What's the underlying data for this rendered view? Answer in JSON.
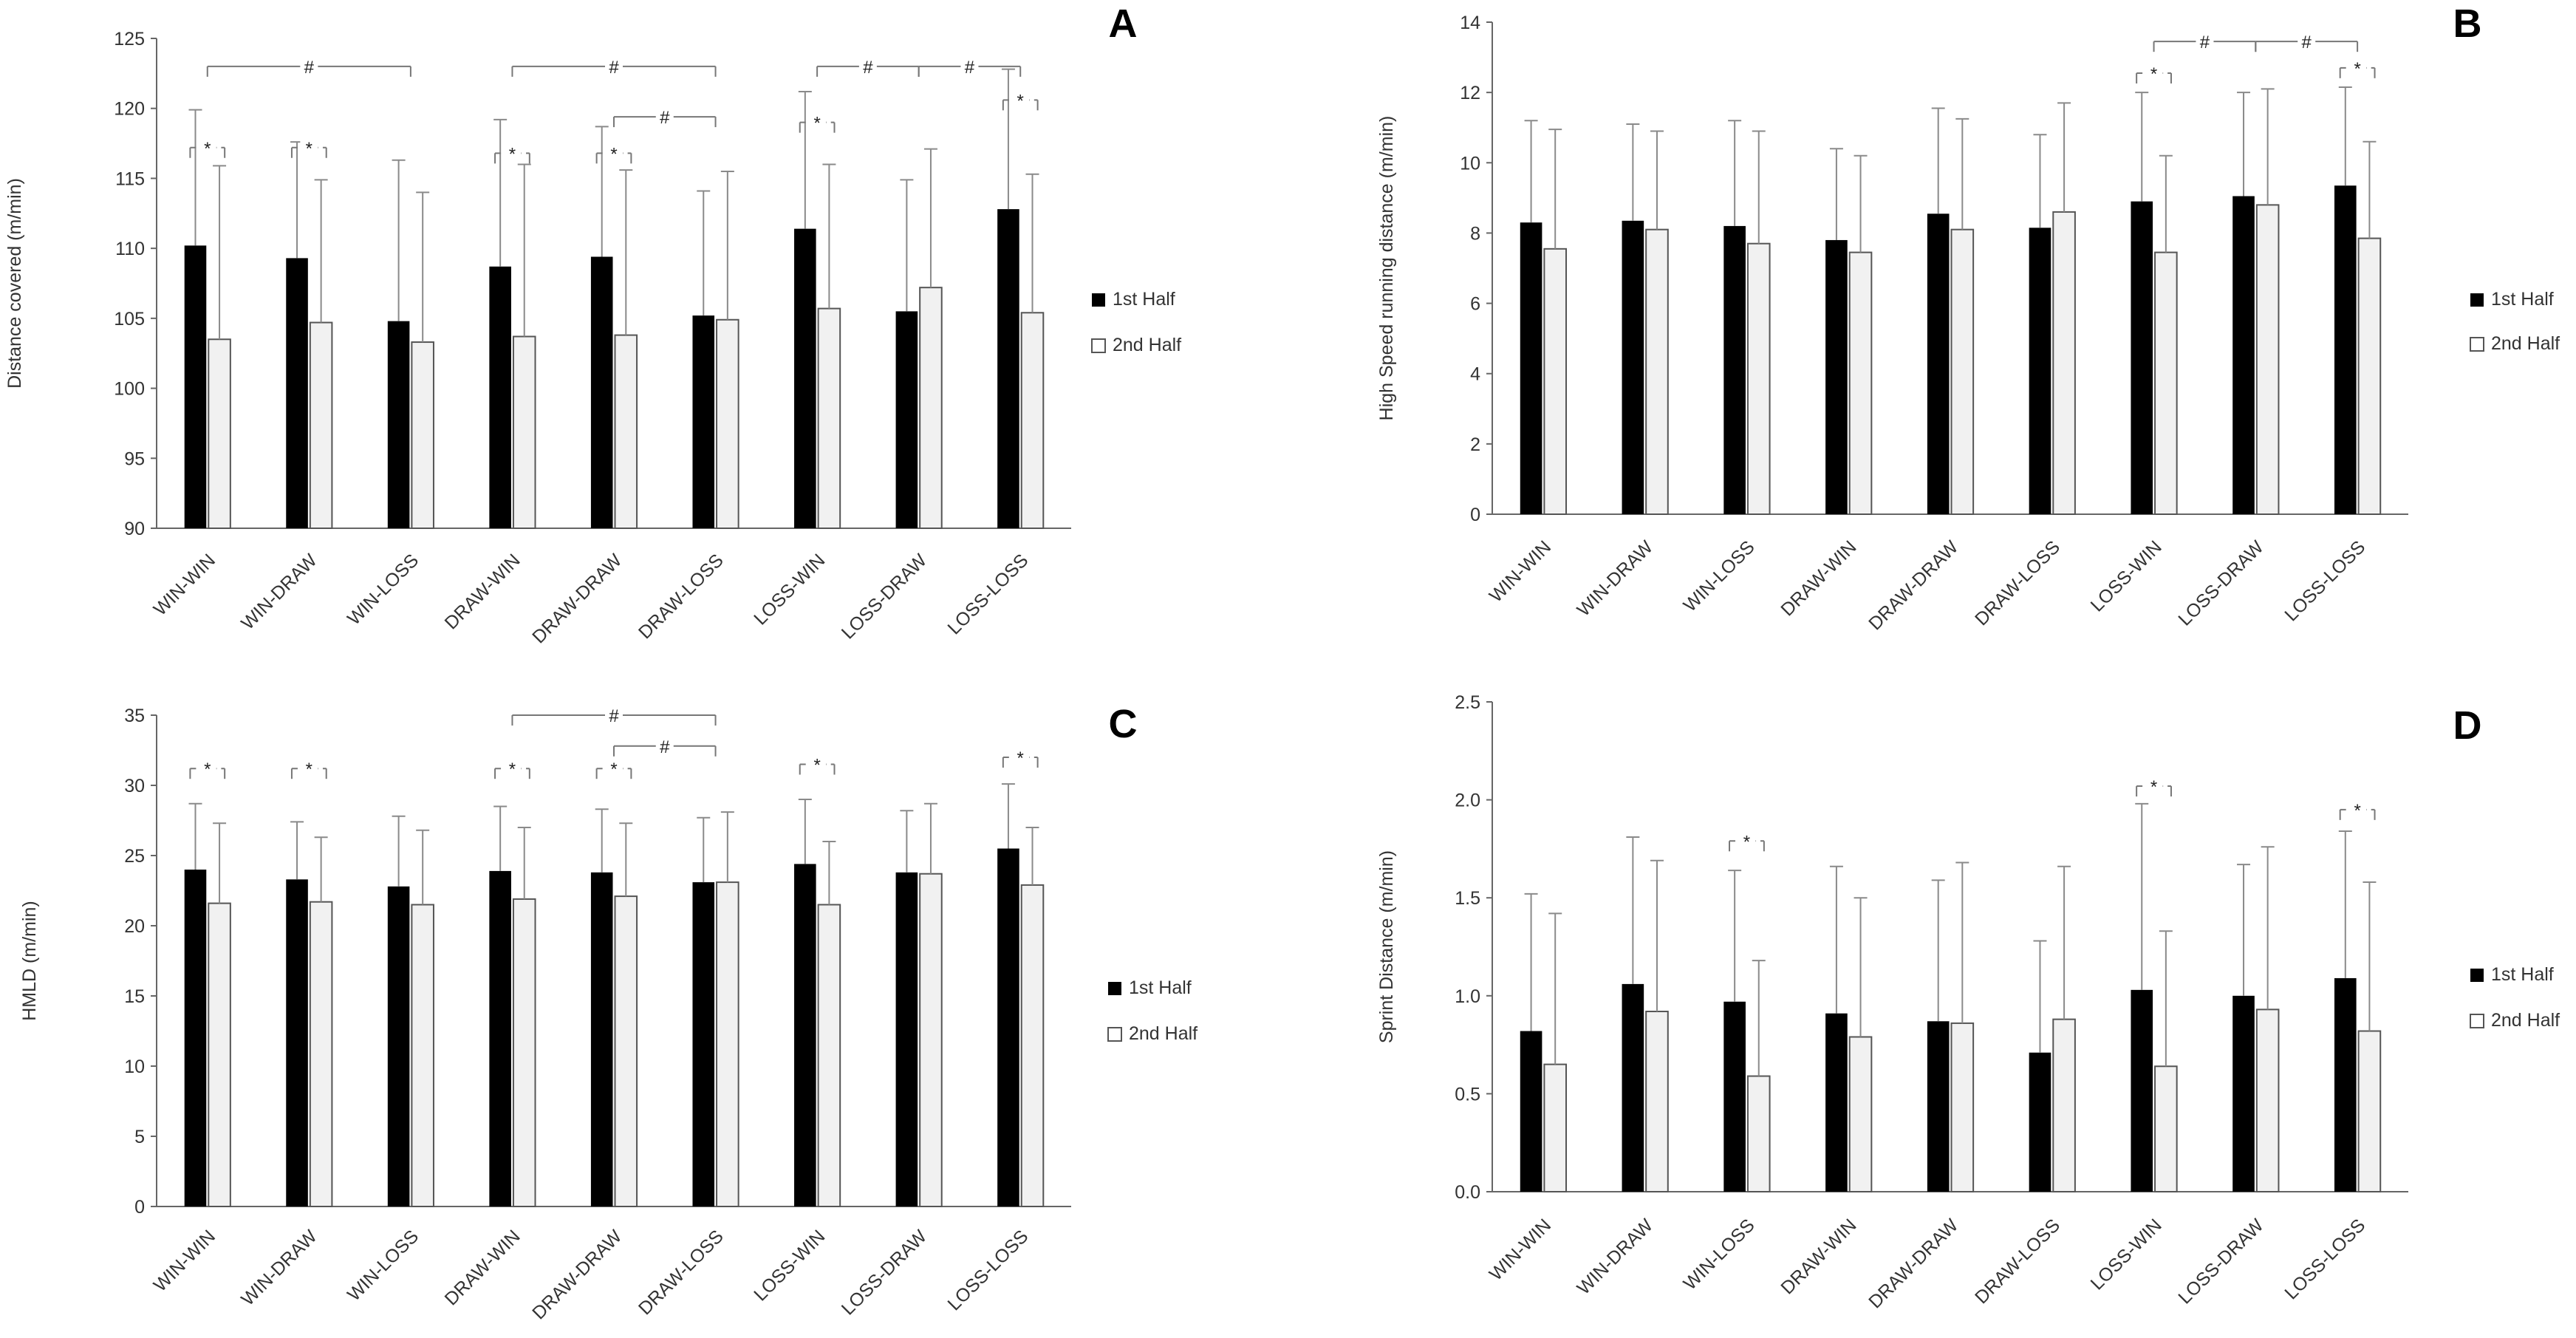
{
  "legend": {
    "first_half": "1st Half",
    "second_half": "2nd Half"
  },
  "colors": {
    "first_half": "#000000",
    "second_half": "#f1f1f1",
    "axis": "#666666",
    "errorbar": "#8a8a8a",
    "bracket": "#777777"
  },
  "chart_data": [
    {
      "panel": "A",
      "type": "bar",
      "ylabel": "Distance covered (m/min)",
      "ylim": [
        90,
        125
      ],
      "yticks": [
        "90",
        "95",
        "100",
        "105",
        "110",
        "115",
        "120",
        "125"
      ],
      "categories": [
        "WIN-WIN",
        "WIN-DRAW",
        "WIN-LOSS",
        "DRAW-WIN",
        "DRAW-DRAW",
        "DRAW-LOSS",
        "LOSS-WIN",
        "LOSS-DRAW",
        "LOSS-LOSS"
      ],
      "series": [
        {
          "name": "1st Half",
          "values": [
            110.2,
            109.3,
            104.8,
            108.7,
            109.4,
            105.2,
            111.4,
            105.5,
            112.8
          ],
          "err_top": [
            119.9,
            117.6,
            116.3,
            119.2,
            118.7,
            114.1,
            121.2,
            114.9,
            122.8
          ]
        },
        {
          "name": "2nd Half",
          "values": [
            103.5,
            104.7,
            103.3,
            103.7,
            103.8,
            104.9,
            105.7,
            107.2,
            105.4
          ],
          "err_top": [
            115.9,
            114.9,
            114.0,
            116.0,
            115.6,
            115.5,
            116.0,
            117.1,
            115.3
          ]
        }
      ],
      "annotations": [
        {
          "type": "within",
          "cat": 0,
          "label": "*",
          "level": 117.2
        },
        {
          "type": "within",
          "cat": 1,
          "label": "*",
          "level": 117.2
        },
        {
          "type": "within",
          "cat": 3,
          "label": "*",
          "level": 116.8
        },
        {
          "type": "within",
          "cat": 4,
          "label": "*",
          "level": 116.8
        },
        {
          "type": "within",
          "cat": 6,
          "label": "*",
          "level": 119.0
        },
        {
          "type": "within",
          "cat": 8,
          "label": "*",
          "level": 120.6
        },
        {
          "type": "between",
          "from": 0,
          "to": 2,
          "label": "#",
          "level": 123.0
        },
        {
          "type": "between",
          "from": 3,
          "to": 5,
          "label": "#",
          "level": 123.0
        },
        {
          "type": "between",
          "from": 4,
          "to": 5,
          "label": "#",
          "level": 119.4
        },
        {
          "type": "between",
          "from": 6,
          "to": 7,
          "label": "#",
          "level": 123.0
        },
        {
          "type": "between",
          "from": 7,
          "to": 8,
          "label": "#",
          "level": 123.0
        }
      ]
    },
    {
      "panel": "B",
      "type": "bar",
      "ylabel": "High Speed running distance (m/min)",
      "ylim": [
        0,
        14
      ],
      "yticks": [
        "0",
        "2",
        "4",
        "6",
        "8",
        "10",
        "12",
        "14"
      ],
      "categories": [
        "WIN-WIN",
        "WIN-DRAW",
        "WIN-LOSS",
        "DRAW-WIN",
        "DRAW-DRAW",
        "DRAW-LOSS",
        "LOSS-WIN",
        "LOSS-DRAW",
        "LOSS-LOSS"
      ],
      "series": [
        {
          "name": "1st Half",
          "values": [
            8.3,
            8.35,
            8.2,
            7.8,
            8.55,
            8.15,
            8.9,
            9.05,
            9.35
          ],
          "err_top": [
            11.2,
            11.1,
            11.2,
            10.4,
            11.55,
            10.8,
            12.0,
            12.0,
            12.15
          ]
        },
        {
          "name": "2nd Half",
          "values": [
            7.55,
            8.1,
            7.7,
            7.45,
            8.1,
            8.6,
            7.45,
            8.8,
            7.85
          ],
          "err_top": [
            10.95,
            10.9,
            10.9,
            10.2,
            11.25,
            11.7,
            10.2,
            12.1,
            10.6
          ]
        }
      ],
      "annotations": [
        {
          "type": "within",
          "cat": 6,
          "label": "*",
          "level": 12.55
        },
        {
          "type": "within",
          "cat": 8,
          "label": "*",
          "level": 12.7
        },
        {
          "type": "between",
          "from": 6,
          "to": 7,
          "label": "#",
          "level": 13.45
        },
        {
          "type": "between",
          "from": 7,
          "to": 8,
          "label": "#",
          "level": 13.45
        }
      ]
    },
    {
      "panel": "C",
      "type": "bar",
      "ylabel": "HMLD (m/min)",
      "ylim": [
        0,
        35
      ],
      "yticks": [
        "0",
        "5",
        "10",
        "15",
        "20",
        "25",
        "30",
        "35"
      ],
      "categories": [
        "WIN-WIN",
        "WIN-DRAW",
        "WIN-LOSS",
        "DRAW-WIN",
        "DRAW-DRAW",
        "DRAW-LOSS",
        "LOSS-WIN",
        "LOSS-DRAW",
        "LOSS-LOSS"
      ],
      "series": [
        {
          "name": "1st Half",
          "values": [
            24.0,
            23.3,
            22.8,
            23.9,
            23.8,
            23.1,
            24.4,
            23.8,
            25.5
          ],
          "err_top": [
            28.7,
            27.4,
            27.8,
            28.5,
            28.3,
            27.7,
            29.0,
            28.2,
            30.1
          ]
        },
        {
          "name": "2nd Half",
          "values": [
            21.6,
            21.7,
            21.5,
            21.9,
            22.1,
            23.1,
            21.5,
            23.7,
            22.9
          ],
          "err_top": [
            27.3,
            26.3,
            26.8,
            27.0,
            27.3,
            28.1,
            26.0,
            28.7,
            27.0
          ]
        }
      ],
      "annotations": [
        {
          "type": "within",
          "cat": 0,
          "label": "*",
          "level": 31.2
        },
        {
          "type": "within",
          "cat": 1,
          "label": "*",
          "level": 31.2
        },
        {
          "type": "within",
          "cat": 3,
          "label": "*",
          "level": 31.2
        },
        {
          "type": "within",
          "cat": 4,
          "label": "*",
          "level": 31.2
        },
        {
          "type": "within",
          "cat": 6,
          "label": "*",
          "level": 31.5
        },
        {
          "type": "within",
          "cat": 8,
          "label": "*",
          "level": 32.0
        },
        {
          "type": "between",
          "from": 3,
          "to": 5,
          "label": "#",
          "level": 35.0
        },
        {
          "type": "between",
          "from": 4,
          "to": 5,
          "label": "#",
          "level": 32.8
        }
      ]
    },
    {
      "panel": "D",
      "type": "bar",
      "ylabel": "Sprint Distance (m/min)",
      "ylim": [
        0,
        2.5
      ],
      "yticks": [
        "0.0",
        "0.5",
        "1.0",
        "1.5",
        "2.0",
        "2.5"
      ],
      "categories": [
        "WIN-WIN",
        "WIN-DRAW",
        "WIN-LOSS",
        "DRAW-WIN",
        "DRAW-DRAW",
        "DRAW-LOSS",
        "LOSS-WIN",
        "LOSS-DRAW",
        "LOSS-LOSS"
      ],
      "series": [
        {
          "name": "1st Half",
          "values": [
            0.82,
            1.06,
            0.97,
            0.91,
            0.87,
            0.71,
            1.03,
            1.0,
            1.09
          ],
          "err_top": [
            1.52,
            1.81,
            1.64,
            1.66,
            1.59,
            1.28,
            1.98,
            1.67,
            1.84
          ]
        },
        {
          "name": "2nd Half",
          "values": [
            0.65,
            0.92,
            0.59,
            0.79,
            0.86,
            0.88,
            0.64,
            0.93,
            0.82
          ],
          "err_top": [
            1.42,
            1.69,
            1.18,
            1.5,
            1.68,
            1.66,
            1.33,
            1.76,
            1.58
          ]
        }
      ],
      "annotations": [
        {
          "type": "within",
          "cat": 2,
          "label": "*",
          "level": 1.79
        },
        {
          "type": "within",
          "cat": 6,
          "label": "*",
          "level": 2.07
        },
        {
          "type": "within",
          "cat": 8,
          "label": "*",
          "level": 1.95
        }
      ]
    }
  ]
}
